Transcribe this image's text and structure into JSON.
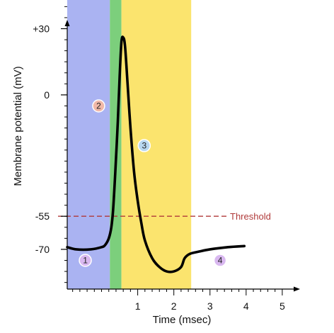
{
  "chart_data": {
    "type": "line",
    "xlabel": "Time (msec)",
    "ylabel": "Membrane potential (mV)",
    "xlim": [
      -0.95,
      5.1
    ],
    "ylim": [
      -88,
      43
    ],
    "x_ticks": [
      1,
      2,
      3,
      4,
      5
    ],
    "x_tick_labels": [
      "1",
      "2",
      "3",
      "4",
      "5"
    ],
    "y_ticks": [
      30,
      0,
      -55,
      -70
    ],
    "y_tick_labels": [
      "+30",
      "0",
      "-55",
      "-70"
    ],
    "threshold": {
      "value": -55,
      "label": "Threshold",
      "color": "#b03a3a"
    },
    "bands": [
      {
        "from": -0.95,
        "to": 0.23,
        "color": "#aab3f2"
      },
      {
        "from": 0.23,
        "to": 0.55,
        "color": "#7ccf7c"
      },
      {
        "from": 0.55,
        "to": 2.48,
        "color": "#fbe46e"
      }
    ],
    "phase_markers": [
      {
        "label": "1",
        "x": -0.45,
        "y": -75,
        "color": "#d9b8f0"
      },
      {
        "label": "2",
        "x": -0.08,
        "y": -5,
        "color": "#f0b8a8"
      },
      {
        "label": "3",
        "x": 1.18,
        "y": -23,
        "color": "#b8d8f0"
      },
      {
        "label": "4",
        "x": 3.28,
        "y": -75,
        "color": "#d9b8f0"
      }
    ],
    "series": [
      {
        "color": "#000000",
        "points": [
          [
            -0.95,
            -69
          ],
          [
            -0.7,
            -70
          ],
          [
            -0.3,
            -70
          ],
          [
            0.0,
            -69
          ],
          [
            0.1,
            -68
          ],
          [
            0.2,
            -65
          ],
          [
            0.27,
            -60
          ],
          [
            0.32,
            -52
          ],
          [
            0.38,
            -35
          ],
          [
            0.45,
            -12
          ],
          [
            0.5,
            8
          ],
          [
            0.55,
            24
          ],
          [
            0.6,
            26
          ],
          [
            0.65,
            22
          ],
          [
            0.72,
            5
          ],
          [
            0.8,
            -15
          ],
          [
            0.9,
            -35
          ],
          [
            1.0,
            -48
          ],
          [
            1.1,
            -58
          ],
          [
            1.2,
            -66
          ],
          [
            1.4,
            -74
          ],
          [
            1.6,
            -78
          ],
          [
            1.8,
            -80
          ],
          [
            2.0,
            -80
          ],
          [
            2.2,
            -78
          ],
          [
            2.3,
            -74
          ],
          [
            2.45,
            -72
          ],
          [
            2.7,
            -71
          ],
          [
            3.0,
            -70
          ],
          [
            3.5,
            -69
          ],
          [
            3.95,
            -68.5
          ]
        ]
      }
    ]
  }
}
